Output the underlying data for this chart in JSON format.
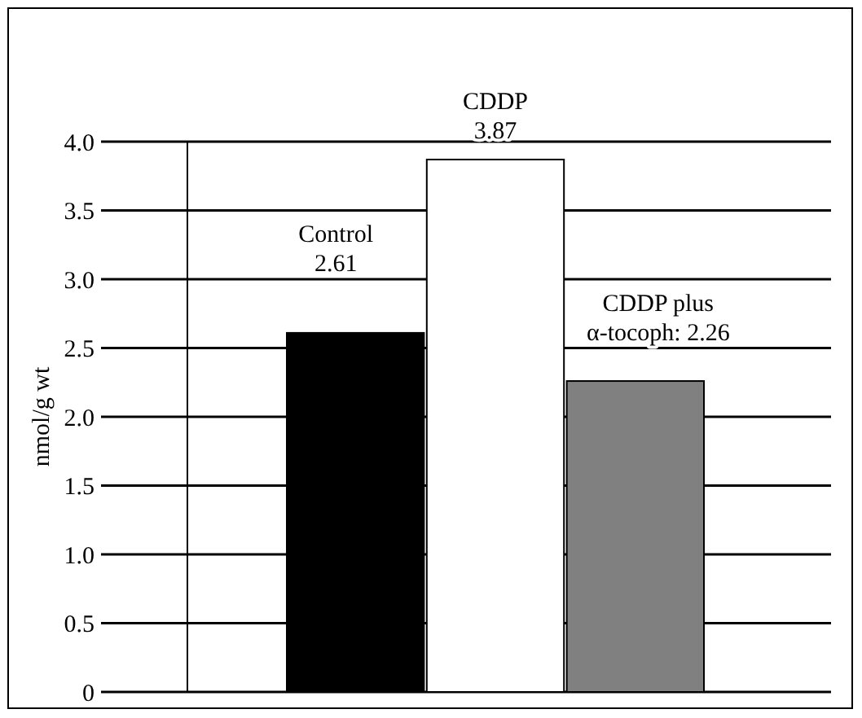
{
  "chart_data": {
    "type": "bar",
    "ylabel": "nmol/g wt",
    "categories": [
      null,
      null,
      null
    ],
    "values": [
      2.61,
      3.87,
      2.26
    ],
    "colors": [
      "#000000",
      "#ffffff",
      "#808080"
    ],
    "value_labels": [
      "Control\n2.61",
      "CDDP\n3.87",
      "CDDP plus\nα-tocoph: 2.26"
    ],
    "ylim": [
      0,
      4
    ],
    "yticks": [
      0,
      0.5,
      {
        "value": 1,
        "label": "1.0"
      },
      1.5,
      {
        "value": 2,
        "label": "2.0"
      },
      2.5,
      {
        "value": 3,
        "label": "3.0"
      },
      3.5,
      {
        "value": 4,
        "label": "4.0"
      }
    ],
    "grid": "y"
  }
}
